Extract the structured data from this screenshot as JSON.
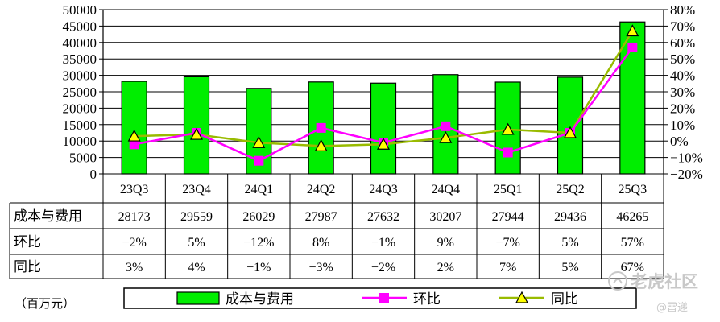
{
  "chart_data": {
    "type": "bar",
    "categories": [
      "23Q3",
      "23Q4",
      "24Q1",
      "24Q2",
      "24Q3",
      "24Q4",
      "25Q1",
      "25Q2",
      "25Q3"
    ],
    "series": [
      {
        "name": "成本与费用",
        "type": "bar",
        "axis": "left",
        "color": "#00ee00",
        "values": [
          28173,
          29559,
          26029,
          27987,
          27632,
          30207,
          27944,
          29436,
          46265
        ]
      },
      {
        "name": "环比",
        "type": "line",
        "axis": "right",
        "color": "#ff00ff",
        "marker": "square",
        "values": [
          -2,
          5,
          -12,
          8,
          -1,
          9,
          -7,
          5,
          57
        ]
      },
      {
        "name": "同比",
        "type": "line",
        "axis": "right",
        "color": "#99bb00",
        "marker": "triangle",
        "values": [
          3,
          4,
          -1,
          -3,
          -2,
          2,
          7,
          5,
          67
        ]
      }
    ],
    "y_left": {
      "min": 0,
      "max": 50000,
      "step": 5000
    },
    "y_right": {
      "min": -20,
      "max": 80,
      "step": 10,
      "unit": "%"
    },
    "ylabel_left": "",
    "ylabel_right": "",
    "title": "",
    "grid": "horizontal",
    "legend": "bottom",
    "table": {
      "row_labels": [
        "成本与费用",
        "环比",
        "同比"
      ],
      "rows": [
        [
          "28173",
          "29559",
          "26029",
          "27987",
          "27632",
          "30207",
          "27944",
          "29436",
          "46265"
        ],
        [
          "-2%",
          "5%",
          "-12%",
          "8%",
          "-1%",
          "9%",
          "-7%",
          "5%",
          "57%"
        ],
        [
          "3%",
          "4%",
          "-1%",
          "-3%",
          "-2%",
          "2%",
          "7%",
          "5%",
          "67%"
        ]
      ]
    }
  },
  "unit_label": "（百万元）",
  "watermark": {
    "line1": "老虎社区",
    "line2": "@雷递"
  }
}
